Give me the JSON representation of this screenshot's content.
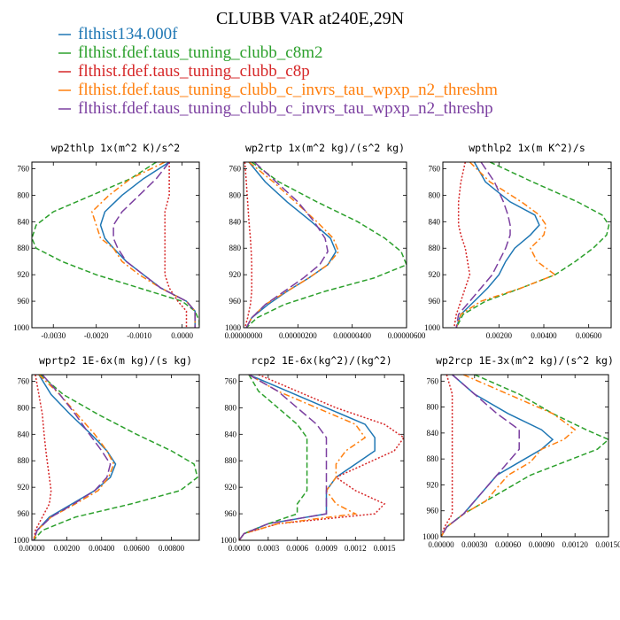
{
  "figure_title": "CLUBB VAR at240E,29N",
  "legend": {
    "placement": "top",
    "entries": [
      {
        "label": "flthist134.000f",
        "color": "#1f77b4",
        "dash": "solid"
      },
      {
        "label": "flthist.fdef.taus_tuning_clubb_c8m2",
        "color": "#2ca02c",
        "dash": "dashed"
      },
      {
        "label": "flthist.fdef.taus_tuning_clubb_c8p",
        "color": "#d62728",
        "dash": "dotted"
      },
      {
        "label": "flthist.fdef.taus_tuning_clubb_c_invrs_tau_wpxp_n2_threshm",
        "color": "#ff7f0e",
        "dash": "dashdot"
      },
      {
        "label": "flthist.fdef.taus_tuning_clubb_c_invrs_tau_wpxp_n2_threshp",
        "color": "#7b3fa0",
        "dash": "longdash"
      }
    ]
  },
  "chart_data": [
    {
      "type": "line",
      "title": "wp2thlp  1x(m^2 K)/s^2",
      "xlim": [
        -0.0035,
        0.0004
      ],
      "ylim": [
        1000,
        750
      ],
      "y_reversed": true,
      "xticks": [
        -0.003,
        -0.002,
        -0.001,
        0.0
      ],
      "xtick_labels": [
        "-0.0030",
        "-0.0020",
        "-0.0010",
        "0.0000"
      ],
      "yticks": [
        760,
        800,
        840,
        880,
        920,
        960,
        1000
      ],
      "ytick_labels": [
        "760",
        "800",
        "840",
        "880",
        "920",
        "960",
        "1000"
      ],
      "y": [
        750,
        775,
        800,
        825,
        845,
        865,
        880,
        900,
        920,
        940,
        960,
        975,
        990,
        1000
      ],
      "series": [
        {
          "name": "flthist134.000f",
          "values": [
            -0.0003,
            -0.0009,
            -0.0014,
            -0.0018,
            -0.0019,
            -0.0018,
            -0.0016,
            -0.0013,
            -0.0009,
            -0.0005,
            0.0001,
            0.0003,
            0.0003,
            0.0003
          ]
        },
        {
          "name": "flthist.fdef.taus_tuning_clubb_c8m2",
          "values": [
            -0.0006,
            -0.0012,
            -0.0021,
            -0.003,
            -0.0034,
            -0.0035,
            -0.0034,
            -0.0028,
            -0.002,
            -0.001,
            0.0,
            0.0003,
            0.0004,
            0.0004
          ]
        },
        {
          "name": "flthist.fdef.taus_tuning_clubb_c8p",
          "values": [
            -0.0003,
            -0.0003,
            -0.0003,
            -0.0004,
            -0.0004,
            -0.0004,
            -0.0004,
            -0.0004,
            -0.0004,
            -0.0003,
            -0.0001,
            0.0001,
            0.0001,
            0.0001
          ]
        },
        {
          "name": "flthist.fdef.taus_tuning_clubb_c_invrs_tau_wpxp_n2_threshm",
          "values": [
            -0.0004,
            -0.0012,
            -0.0017,
            -0.0021,
            -0.002,
            -0.0019,
            -0.0016,
            -0.0014,
            -0.001,
            -0.0005,
            0.0001,
            0.0003,
            0.0003,
            0.0003
          ]
        },
        {
          "name": "flthist.fdef.taus_tuning_clubb_c_invrs_tau_wpxp_n2_threshp",
          "values": [
            -0.0003,
            -0.0006,
            -0.001,
            -0.0014,
            -0.0016,
            -0.0016,
            -0.0015,
            -0.0013,
            -0.0009,
            -0.0005,
            0.0001,
            0.0003,
            0.0003,
            0.0003
          ]
        }
      ]
    },
    {
      "type": "line",
      "title": "wp2rtp  1x(m^2 kg)/(s^2 kg)",
      "xlim": [
        0.0,
        6e-06
      ],
      "ylim": [
        1000,
        750
      ],
      "y_reversed": true,
      "xticks": [
        0.0,
        2e-06,
        4e-06,
        6e-06
      ],
      "xtick_labels": [
        "0.00000000",
        "0.00000200",
        "0.00000400",
        "0.00000600"
      ],
      "yticks": [
        760,
        800,
        840,
        880,
        920,
        960,
        1000
      ],
      "ytick_labels": [
        "760",
        "800",
        "840",
        "880",
        "920",
        "960",
        "1000"
      ],
      "y": [
        750,
        780,
        810,
        840,
        865,
        885,
        905,
        925,
        945,
        965,
        985,
        1000
      ],
      "series": [
        {
          "name": "flthist134.000f",
          "values": [
            2e-07,
            8e-07,
            1.6e-06,
            2.5e-06,
            3.2e-06,
            3.4e-06,
            3.1e-06,
            2.4e-06,
            1.6e-06,
            9e-07,
            3e-07,
            1e-07
          ]
        },
        {
          "name": "flthist.fdef.taus_tuning_clubb_c8m2",
          "values": [
            3e-07,
            1.3e-06,
            2.7e-06,
            4.2e-06,
            5.2e-06,
            5.8e-06,
            6e-06,
            4.8e-06,
            3e-06,
            1.5e-06,
            5e-07,
            1e-07
          ]
        },
        {
          "name": "flthist.fdef.taus_tuning_clubb_c8p",
          "values": [
            5e-08,
            1e-07,
            1.5e-07,
            2e-07,
            2.5e-07,
            2.8e-07,
            3e-07,
            3e-07,
            3e-07,
            2.5e-07,
            1.5e-07,
            5e-08
          ]
        },
        {
          "name": "flthist.fdef.taus_tuning_clubb_c_invrs_tau_wpxp_n2_threshm",
          "values": [
            2e-07,
            1.1e-06,
            1.9e-06,
            2.7e-06,
            3.3e-06,
            3.5e-06,
            3.1e-06,
            2.4e-06,
            1.6e-06,
            8e-07,
            3e-07,
            1e-07
          ]
        },
        {
          "name": "flthist.fdef.taus_tuning_clubb_c_invrs_tau_wpxp_n2_threshp",
          "values": [
            4e-07,
            1.2e-06,
            2e-06,
            2.6e-06,
            3e-06,
            3.1e-06,
            2.8e-06,
            2.2e-06,
            1.5e-06,
            8e-07,
            3e-07,
            1e-07
          ]
        }
      ]
    },
    {
      "type": "line",
      "title": "wpthlp2  1x(m K^2)/s",
      "xlim": [
        -0.0005,
        0.007
      ],
      "ylim": [
        1000,
        750
      ],
      "y_reversed": true,
      "xticks": [
        0.002,
        0.004,
        0.006
      ],
      "xtick_labels": [
        "0.00200",
        "0.00400",
        "0.00600"
      ],
      "yticks": [
        760,
        800,
        840,
        880,
        920,
        960,
        1000
      ],
      "ytick_labels": [
        "760",
        "800",
        "840",
        "880",
        "920",
        "960",
        "1000"
      ],
      "y": [
        750,
        780,
        810,
        830,
        845,
        860,
        880,
        900,
        920,
        940,
        960,
        980,
        1000
      ],
      "series": [
        {
          "name": "flthist134.000f",
          "values": [
            0.0009,
            0.0014,
            0.0025,
            0.0036,
            0.0038,
            0.0034,
            0.0027,
            0.0023,
            0.002,
            0.0015,
            0.0009,
            0.0003,
            0.0001
          ]
        },
        {
          "name": "flthist.fdef.taus_tuning_clubb_c8m2",
          "values": [
            0.0016,
            0.0035,
            0.0055,
            0.0066,
            0.0069,
            0.0068,
            0.0062,
            0.0054,
            0.0045,
            0.003,
            0.0014,
            0.0004,
            0.0001
          ]
        },
        {
          "name": "flthist.fdef.taus_tuning_clubb_c8p",
          "values": [
            0.0005,
            0.0003,
            0.0002,
            0.0002,
            0.0002,
            0.0003,
            0.0005,
            0.0006,
            0.0007,
            0.0005,
            0.0003,
            0.0001,
            0.0
          ]
        },
        {
          "name": "flthist.fdef.taus_tuning_clubb_c_invrs_tau_wpxp_n2_threshm",
          "values": [
            0.0007,
            0.0016,
            0.003,
            0.0038,
            0.0041,
            0.004,
            0.0034,
            0.0037,
            0.0045,
            0.003,
            0.0012,
            0.0003,
            0.0001
          ]
        },
        {
          "name": "flthist.fdef.taus_tuning_clubb_c_invrs_tau_wpxp_n2_threshp",
          "values": [
            0.0012,
            0.0018,
            0.0022,
            0.0024,
            0.0025,
            0.0025,
            0.0023,
            0.002,
            0.0017,
            0.0012,
            0.0007,
            0.0002,
            0.0001
          ]
        }
      ]
    },
    {
      "type": "line",
      "title": "wprtp2  1E-6x(m kg)/(s kg)",
      "xlim": [
        0.0,
        0.0096
      ],
      "ylim": [
        1000,
        750
      ],
      "y_reversed": true,
      "xticks": [
        0.0,
        0.002,
        0.004,
        0.006,
        0.008
      ],
      "xtick_labels": [
        "0.00000",
        "0.00200",
        "0.00400",
        "0.00600",
        "0.00800"
      ],
      "yticks": [
        760,
        800,
        840,
        880,
        920,
        960,
        1000
      ],
      "ytick_labels": [
        "760",
        "800",
        "840",
        "880",
        "920",
        "960",
        "1000"
      ],
      "y": [
        750,
        780,
        810,
        840,
        865,
        885,
        905,
        925,
        945,
        965,
        985,
        1000
      ],
      "series": [
        {
          "name": "flthist134.000f",
          "values": [
            0.0004,
            0.0011,
            0.0022,
            0.0034,
            0.0043,
            0.0048,
            0.0045,
            0.0036,
            0.0023,
            0.001,
            0.0003,
            0.0001
          ]
        },
        {
          "name": "flthist.fdef.taus_tuning_clubb_c8m2",
          "values": [
            0.0005,
            0.0018,
            0.0038,
            0.006,
            0.008,
            0.0093,
            0.0095,
            0.0085,
            0.0057,
            0.0025,
            0.0006,
            0.0001
          ]
        },
        {
          "name": "flthist.fdef.taus_tuning_clubb_c8p",
          "values": [
            0.0002,
            0.0004,
            0.0006,
            0.0007,
            0.0008,
            0.0009,
            0.001,
            0.0011,
            0.001,
            0.0006,
            0.0002,
            0.0001
          ]
        },
        {
          "name": "flthist.fdef.taus_tuning_clubb_c_invrs_tau_wpxp_n2_threshm",
          "values": [
            0.0004,
            0.0016,
            0.0026,
            0.0036,
            0.0043,
            0.0047,
            0.0044,
            0.0038,
            0.0025,
            0.0011,
            0.0003,
            0.0001
          ]
        },
        {
          "name": "flthist.fdef.taus_tuning_clubb_c_invrs_tau_wpxp_n2_threshp",
          "values": [
            0.0006,
            0.0016,
            0.0025,
            0.0033,
            0.004,
            0.0045,
            0.0043,
            0.0036,
            0.0024,
            0.0011,
            0.0003,
            0.0001
          ]
        }
      ]
    },
    {
      "type": "line",
      "title": "rcp2  1E-6x(kg^2)/(kg^2)",
      "xlim": [
        0.0,
        0.0017
      ],
      "ylim": [
        1000,
        750
      ],
      "y_reversed": true,
      "xticks": [
        0.0,
        0.0003,
        0.0006,
        0.0009,
        0.0012,
        0.0015
      ],
      "xtick_labels": [
        "0.0000",
        "0.0003",
        "0.0006",
        "0.0009",
        "0.0012",
        "0.0015"
      ],
      "yticks": [
        760,
        800,
        840,
        880,
        920,
        960,
        1000
      ],
      "ytick_labels": [
        "760",
        "800",
        "840",
        "880",
        "920",
        "960",
        "1000"
      ],
      "y": [
        750,
        775,
        800,
        825,
        845,
        865,
        885,
        905,
        925,
        945,
        960,
        975,
        990,
        1000
      ],
      "series": [
        {
          "name": "flthist134.000f",
          "values": [
            0.0001,
            0.0005,
            0.0009,
            0.0013,
            0.0014,
            0.0014,
            0.0012,
            0.001,
            0.0009,
            0.0009,
            0.0009,
            0.0003,
            5e-05,
            0.0
          ]
        },
        {
          "name": "flthist.fdef.taus_tuning_clubb_c8m2",
          "values": [
            0.0001,
            0.0002,
            0.0004,
            0.0006,
            0.0007,
            0.0007,
            0.0007,
            0.0007,
            0.0007,
            0.0006,
            0.0006,
            0.0003,
            5e-05,
            0.0
          ]
        },
        {
          "name": "flthist.fdef.taus_tuning_clubb_c8p",
          "values": [
            0.0002,
            0.0006,
            0.001,
            0.0015,
            0.0017,
            0.0016,
            0.0013,
            0.001,
            0.0012,
            0.0015,
            0.0014,
            0.0004,
            5e-05,
            0.0
          ]
        },
        {
          "name": "flthist.fdef.taus_tuning_clubb_c_invrs_tau_wpxp_n2_threshm",
          "values": [
            0.0001,
            0.0004,
            0.0008,
            0.0012,
            0.0013,
            0.0011,
            0.001,
            0.001,
            0.0009,
            0.001,
            0.0012,
            0.0004,
            5e-05,
            0.0
          ]
        },
        {
          "name": "flthist.fdef.taus_tuning_clubb_c_invrs_tau_wpxp_n2_threshp",
          "values": [
            0.0001,
            0.0004,
            0.0006,
            0.0008,
            0.0009,
            0.0009,
            0.0009,
            0.0009,
            0.0009,
            0.0009,
            0.0009,
            0.0003,
            5e-05,
            0.0
          ]
        }
      ]
    },
    {
      "type": "line",
      "title": "wp2rcp  1E-3x(m^2 kg)/(s^2 kg)",
      "xlim": [
        0.0,
        0.0015
      ],
      "ylim": [
        1000,
        750
      ],
      "y_reversed": true,
      "xticks": [
        0.0,
        0.0003,
        0.0006,
        0.0009,
        0.0012,
        0.0015
      ],
      "xtick_labels": [
        "0.00000",
        "0.00030",
        "0.00060",
        "0.00090",
        "0.00120",
        "0.00150"
      ],
      "yticks": [
        760,
        800,
        840,
        880,
        920,
        960,
        1000
      ],
      "ytick_labels": [
        "760",
        "800",
        "840",
        "880",
        "920",
        "960",
        "1000"
      ],
      "y": [
        750,
        780,
        810,
        835,
        850,
        865,
        885,
        905,
        925,
        945,
        965,
        985,
        1000
      ],
      "series": [
        {
          "name": "flthist134.000f",
          "values": [
            0.0001,
            0.0003,
            0.0006,
            0.0009,
            0.001,
            0.0009,
            0.0007,
            0.0005,
            0.0004,
            0.0003,
            0.0002,
            5e-05,
            0.0
          ]
        },
        {
          "name": "flthist.fdef.taus_tuning_clubb_c8m2",
          "values": [
            0.0003,
            0.0007,
            0.001,
            0.0013,
            0.0015,
            0.0014,
            0.0011,
            0.0008,
            0.0006,
            0.0004,
            0.0002,
            5e-05,
            0.0
          ]
        },
        {
          "name": "flthist.fdef.taus_tuning_clubb_c8p",
          "values": [
            5e-05,
            0.0001,
            0.0001,
            0.0001,
            0.0001,
            0.0001,
            0.0001,
            0.0001,
            0.0001,
            0.0001,
            0.0001,
            3e-05,
            0.0
          ]
        },
        {
          "name": "flthist.fdef.taus_tuning_clubb_c_invrs_tau_wpxp_n2_threshm",
          "values": [
            0.0002,
            0.0006,
            0.001,
            0.0012,
            0.0011,
            0.0009,
            0.0008,
            0.0006,
            0.0005,
            0.0004,
            0.0002,
            5e-05,
            0.0
          ]
        },
        {
          "name": "flthist.fdef.taus_tuning_clubb_c_invrs_tau_wpxp_n2_threshp",
          "values": [
            0.0001,
            0.0003,
            0.0005,
            0.0007,
            0.0007,
            0.0007,
            0.0006,
            0.0005,
            0.0004,
            0.0003,
            0.0002,
            5e-05,
            0.0
          ]
        }
      ]
    }
  ]
}
